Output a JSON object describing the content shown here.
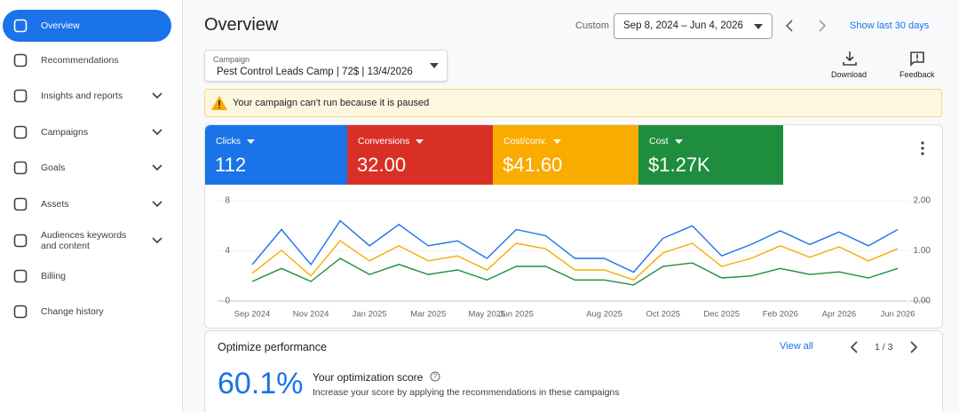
{
  "sidebar": {
    "items": [
      {
        "label": "Overview",
        "active": true,
        "expandable": false
      },
      {
        "label": "Recommendations",
        "active": false,
        "expandable": false
      },
      {
        "label": "Insights and reports",
        "active": false,
        "expandable": true
      },
      {
        "label": "Campaigns",
        "active": false,
        "expandable": true
      },
      {
        "label": "Goals",
        "active": false,
        "expandable": true
      },
      {
        "label": "Assets",
        "active": false,
        "expandable": true
      },
      {
        "label": "Audiences keywords and content",
        "active": false,
        "expandable": true
      },
      {
        "label": "Billing",
        "active": false,
        "expandable": false
      },
      {
        "label": "Change history",
        "active": false,
        "expandable": false
      }
    ]
  },
  "header": {
    "title": "Overview",
    "date_label": "Custom",
    "date_range": "Sep 8, 2024 – Jun 4, 2026",
    "show_last": "Show last 30 days"
  },
  "campaign": {
    "label": "Campaign",
    "value": "Pest Control Leads Camp | 72$ | 13/4/2026"
  },
  "actions": [
    "Download",
    "Feedback"
  ],
  "alert": "Your campaign can't run because it is paused",
  "metrics": [
    {
      "name": "Clicks",
      "value": "112",
      "color": "#1a73e8"
    },
    {
      "name": "Conversions",
      "value": "32.00",
      "color": "#d93025"
    },
    {
      "name": "Cost/conv.",
      "value": "$41.60",
      "color": "#f9ab00"
    },
    {
      "name": "Cost",
      "value": "$1.27K",
      "color": "#1e8e3e"
    }
  ],
  "chart_data": {
    "type": "line",
    "categories": [
      "Sep 2024",
      null,
      "Nov 2024",
      null,
      "Jan 2025",
      null,
      "Mar 2025",
      null,
      "May 2025",
      "Jun 2025",
      null,
      null,
      "Aug 2025",
      null,
      "Oct 2025",
      null,
      "Dec 2025",
      null,
      "Feb 2026",
      null,
      "Apr 2026",
      null,
      "Jun 2026"
    ],
    "series": [
      {
        "color": "#1a73e8",
        "values": [
          2.9,
          5.7,
          2.9,
          6.4,
          4.4,
          6.1,
          4.4,
          4.8,
          3.4,
          5.7,
          5.2,
          3.4,
          3.4,
          2.3,
          5.0,
          6.0,
          3.6,
          4.5,
          5.6,
          4.5,
          5.5,
          4.4,
          5.7
        ]
      },
      {
        "color": "#f9ab00",
        "axis": "y2",
        "values": [
          0.55,
          1.01,
          0.5,
          1.2,
          0.8,
          1.1,
          0.8,
          0.9,
          0.62,
          1.15,
          1.04,
          0.62,
          0.62,
          0.42,
          0.96,
          1.15,
          0.69,
          0.85,
          1.1,
          0.87,
          1.08,
          0.8,
          1.04
        ]
      },
      {
        "color": "#1e8e3e",
        "axis": "y2",
        "values": [
          0.39,
          0.65,
          0.39,
          0.85,
          0.53,
          0.73,
          0.53,
          0.62,
          0.42,
          0.69,
          0.69,
          0.42,
          0.42,
          0.32,
          0.69,
          0.76,
          0.46,
          0.5,
          0.65,
          0.53,
          0.58,
          0.46,
          0.65
        ]
      }
    ],
    "ylim": [
      0,
      8
    ],
    "yticks": [
      0,
      4,
      8
    ],
    "y2lim": [
      0,
      2
    ],
    "y2ticks": [
      {
        "value": 0,
        "label": "0.00"
      },
      {
        "value": 1,
        "label": "1.00"
      },
      {
        "value": 2,
        "label": "2.00"
      }
    ],
    "grid": true
  },
  "optimize": {
    "title": "Optimize performance",
    "view_all": "View all",
    "pager": "1 / 3",
    "score": "60.1%",
    "score_title": "Your optimization score",
    "score_desc": "Increase your score by applying the recommendations in these campaigns"
  }
}
